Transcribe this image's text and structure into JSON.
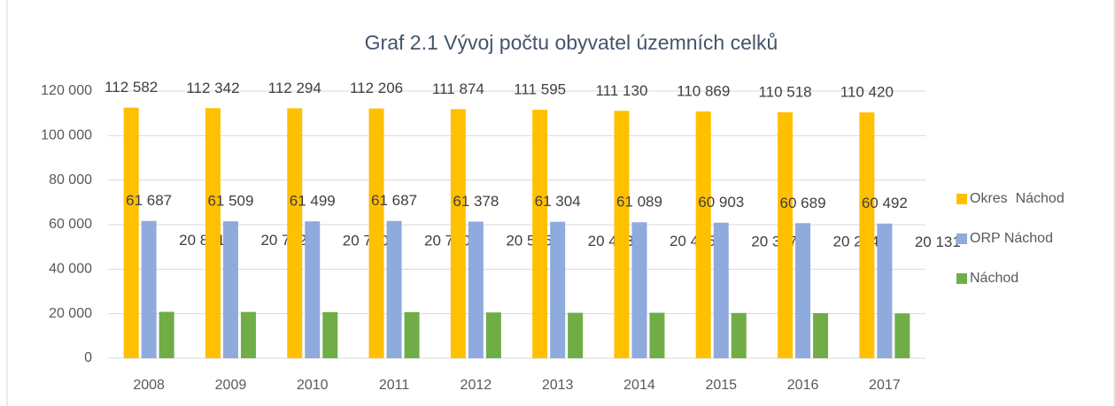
{
  "chart_data": {
    "type": "bar",
    "title": "Graf 2.1 Vývoj počtu obyvatel územních celků",
    "categories": [
      "2008",
      "2009",
      "2010",
      "2011",
      "2012",
      "2013",
      "2014",
      "2015",
      "2016",
      "2017"
    ],
    "series": [
      {
        "name": "Okres  Náchod",
        "color": "#ffc000",
        "values": [
          112582,
          112342,
          112294,
          112206,
          111874,
          111595,
          111130,
          110869,
          110518,
          110420
        ],
        "value_labels": [
          "112 582",
          "112 342",
          "112 294",
          "112 206",
          "111 874",
          "111 595",
          "111 130",
          "110 869",
          "110 518",
          "110 420"
        ]
      },
      {
        "name": "ORP Náchod",
        "color": "#8faadc",
        "values": [
          61687,
          61509,
          61499,
          61687,
          61378,
          61304,
          61089,
          60903,
          60689,
          60492
        ],
        "value_labels": [
          "61 687",
          "61 509",
          "61 499",
          "61 687",
          "61 378",
          "61 304",
          "61 089",
          "60 903",
          "60 689",
          "60 492"
        ]
      },
      {
        "name": "Náchod",
        "color": "#70ad47",
        "values": [
          20851,
          20782,
          20720,
          20730,
          20565,
          20423,
          20445,
          20337,
          20254,
          20131
        ],
        "value_labels": [
          "20 851",
          "20 782",
          "20 720",
          "20 730",
          "20 565",
          "20 423",
          "20 445",
          "20 337",
          "20 254",
          "20 131"
        ]
      }
    ],
    "ylim": [
      0,
      120000
    ],
    "yticks": [
      0,
      {
        "value": 20000,
        "label": "20 000"
      },
      {
        "value": 40000,
        "label": "40 000"
      },
      {
        "value": 60000,
        "label": "60 000"
      },
      {
        "value": 80000,
        "label": "80 000"
      },
      {
        "value": 100000,
        "label": "100 000"
      },
      {
        "value": 120000,
        "label": "120 000"
      }
    ],
    "grid": true,
    "legend": "right"
  }
}
